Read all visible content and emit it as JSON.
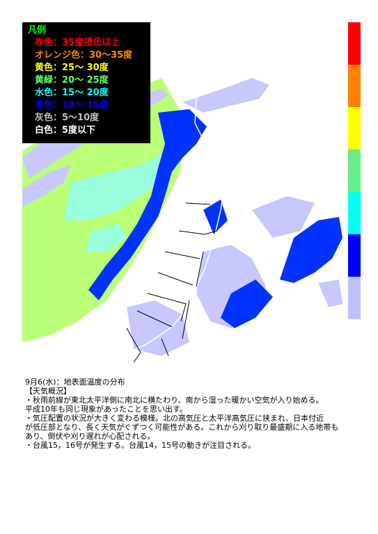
{
  "legend": {
    "title": "凡例",
    "title_color": "#00ff00",
    "items": [
      {
        "label": "赤色：35度摂氏以上",
        "color": "#ff0000"
      },
      {
        "label": "オレンジ色：30～35度",
        "color": "#ff8800"
      },
      {
        "label": "黄色：25～ 30度",
        "color": "#ffff00"
      },
      {
        "label": "黄緑：20～ 25度",
        "color": "#66ff66"
      },
      {
        "label": "水色：15～ 20度",
        "color": "#00ffff"
      },
      {
        "label": "青色：10～ 15度",
        "color": "#0000ff"
      },
      {
        "label": "灰色：5～10度",
        "color": "#c0c0c0"
      },
      {
        "label": "白色：5度以下",
        "color": "#ffffff"
      }
    ]
  },
  "colorbar": [
    "#ff0000",
    "#ff8000",
    "#ffff00",
    "#66ee88",
    "#00ffee",
    "#0000ff",
    "#c0c0ff"
  ],
  "map_colors": {
    "green": "#bbff77",
    "cyan": "#99ffdd",
    "blue": "#0033ff",
    "lavender": "#c8c8ff",
    "coast": "#ffffff",
    "pref": "#000000"
  },
  "caption": {
    "heading": "9月6(水)：地表面温度の分布",
    "section": "【天気概況】",
    "lines": [
      "・秋雨前線が東北太平洋側に南北に横たわり、南から湿った暖かい空気が入り始める。",
      "平成10年も同じ現象があったことを思い出す。",
      "・気圧配置の状況が大きく変わる模様。北の高気圧と太平洋高気圧に挟まれ、日本付近",
      "が低圧部となり、長く天気がぐずつく可能性がある。これから刈り取り最盛期に入る地帯も",
      "あり、倒伏や刈り遅れが心配される。",
      "・台風15，16号が発生する。台風14，15号の動きが注目される。"
    ]
  }
}
